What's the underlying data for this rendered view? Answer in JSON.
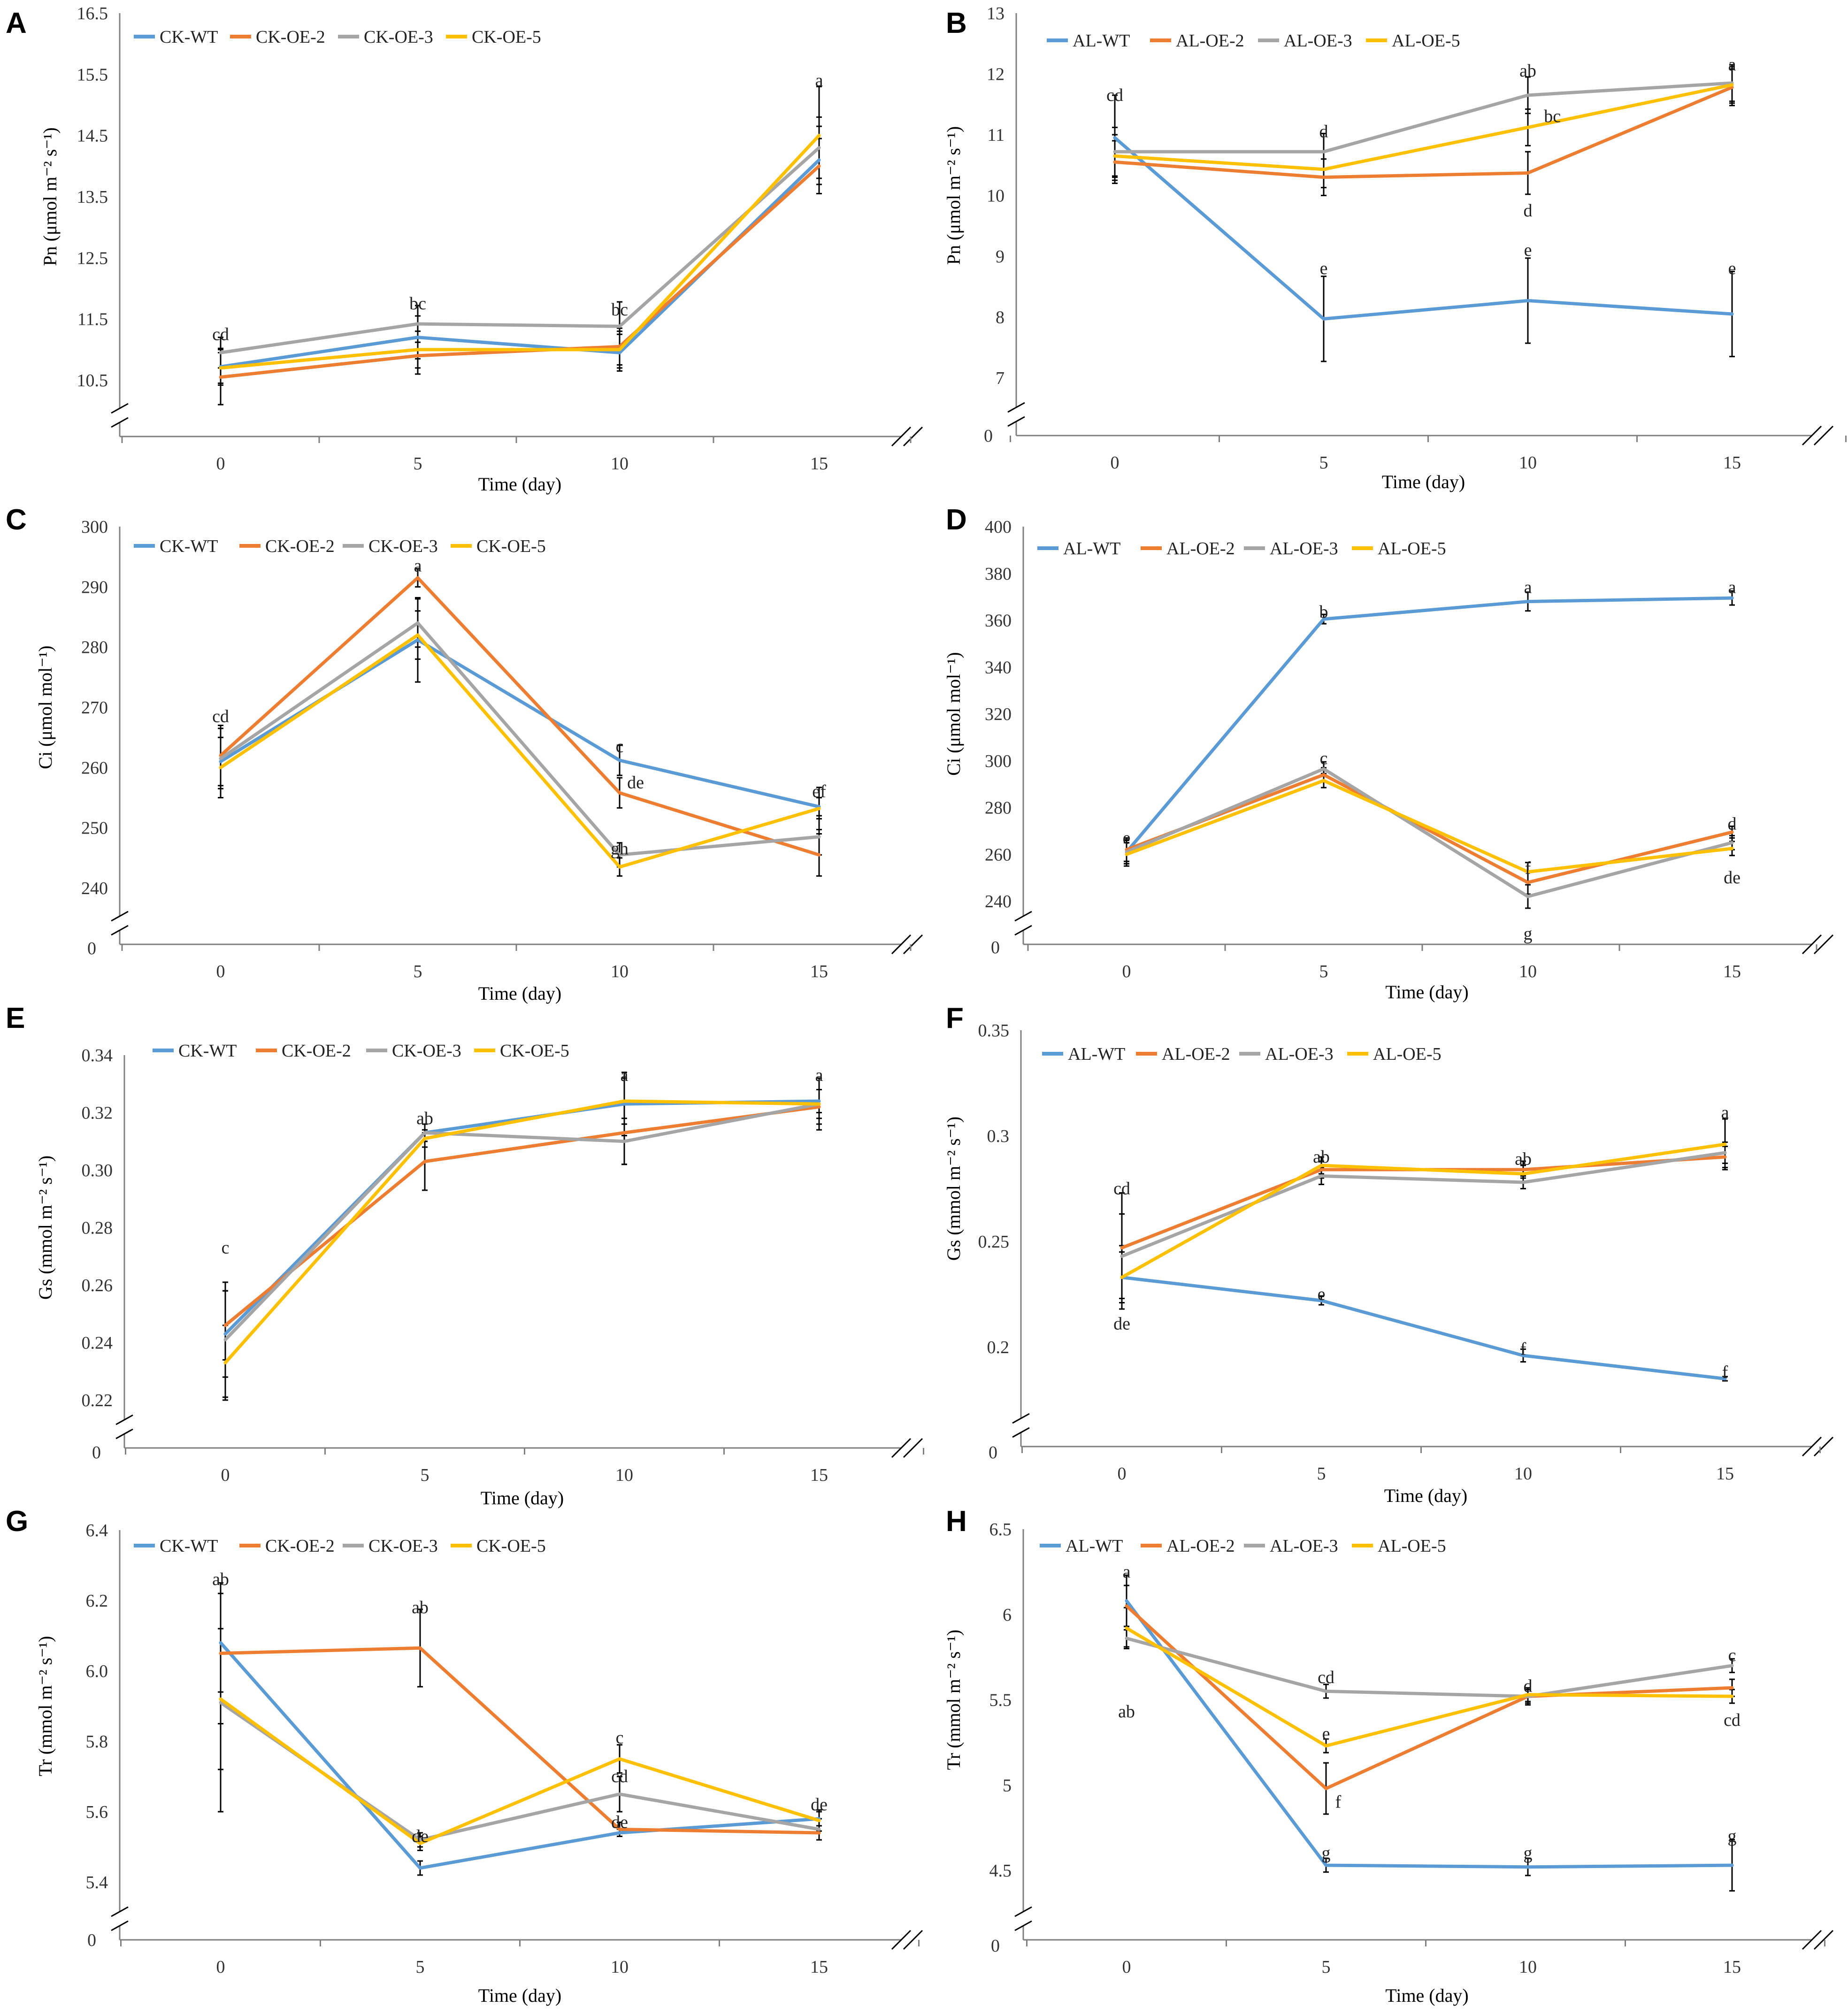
{
  "colors": {
    "WT": "#5B9BD5",
    "OE-2": "#ED7D31",
    "OE-3": "#A5A5A5",
    "OE-5": "#FFC000",
    "axis": "#7F7F7F",
    "errorbar": "#000000"
  },
  "chart_data": [
    {
      "panel": "A",
      "type": "line",
      "x": [
        0,
        5,
        10,
        15
      ],
      "xlabel": "Time (day)",
      "ylabel": "Pn (μmol m⁻² s⁻¹)",
      "ylim": [
        10.5,
        16.5
      ],
      "yticks": [
        "10.5",
        "11.5",
        "12.5",
        "13.5",
        "14.5",
        "15.5",
        "16.5"
      ],
      "zero_label": "",
      "series": [
        {
          "name": "CK-WT",
          "key": "WT",
          "values": [
            10.72,
            11.2,
            10.95,
            14.1
          ],
          "err": [
            0.3,
            0.35,
            0.3,
            0.55
          ]
        },
        {
          "name": "CK-OE-2",
          "key": "OE-2",
          "values": [
            10.55,
            10.9,
            11.05,
            14.0
          ],
          "err": [
            0.45,
            0.3,
            0.3,
            0.45
          ]
        },
        {
          "name": "CK-OE-3",
          "key": "OE-3",
          "values": [
            10.95,
            11.42,
            11.38,
            14.3
          ],
          "err": [
            0.25,
            0.3,
            0.4,
            0.5
          ]
        },
        {
          "name": "CK-OE-5",
          "key": "OE-5",
          "values": [
            10.7,
            11.0,
            11.0,
            14.5
          ],
          "err": [
            0.25,
            0.3,
            0.3,
            0.8
          ]
        }
      ],
      "annotations": [
        {
          "text": "cd",
          "x": 0,
          "y": 11.25
        },
        {
          "text": "bc",
          "x": 5,
          "y": 11.75
        },
        {
          "text": "bc",
          "x": 10,
          "y": 11.65
        },
        {
          "text": "a",
          "x": 15,
          "y": 15.4
        }
      ]
    },
    {
      "panel": "B",
      "type": "line",
      "x": [
        0,
        5,
        10,
        15
      ],
      "xlabel": "Time (day)",
      "ylabel": "Pn (μmol m⁻² s⁻¹)",
      "ylim": [
        7,
        13
      ],
      "yticks": [
        "7",
        "8",
        "9",
        "10",
        "11",
        "12",
        "13"
      ],
      "zero_label": "0",
      "series": [
        {
          "name": "AL-WT",
          "key": "WT",
          "values": [
            10.95,
            7.97,
            8.27,
            8.05
          ],
          "err": [
            0.7,
            0.7,
            0.7,
            0.7
          ]
        },
        {
          "name": "AL-OE-2",
          "key": "OE-2",
          "values": [
            10.55,
            10.3,
            10.37,
            11.78
          ],
          "err": [
            0.35,
            0.3,
            0.35,
            0.3
          ]
        },
        {
          "name": "AL-OE-3",
          "key": "OE-3",
          "values": [
            10.72,
            10.72,
            11.65,
            11.85
          ],
          "err": [
            0.4,
            0.3,
            0.3,
            0.3
          ]
        },
        {
          "name": "AL-OE-5",
          "key": "OE-5",
          "values": [
            10.65,
            10.43,
            11.12,
            11.82
          ],
          "err": [
            0.35,
            0.3,
            0.3,
            0.3
          ]
        }
      ],
      "annotations": [
        {
          "text": "cd",
          "x": 0,
          "y": 11.65
        },
        {
          "text": "d",
          "x": 5,
          "y": 11.05
        },
        {
          "text": "ab",
          "x": 10,
          "y": 12.05
        },
        {
          "text": "bc",
          "x": 10.6,
          "y": 11.3
        },
        {
          "text": "d",
          "x": 10,
          "y": 9.75
        },
        {
          "text": "a",
          "x": 15,
          "y": 12.15
        },
        {
          "text": "e",
          "x": 5,
          "y": 8.8
        },
        {
          "text": "e",
          "x": 10,
          "y": 9.1
        },
        {
          "text": "e",
          "x": 15,
          "y": 8.8
        }
      ]
    },
    {
      "panel": "C",
      "type": "line",
      "x": [
        0,
        5,
        10,
        15
      ],
      "xlabel": "Time (day)",
      "ylabel": "Ci (μmol mol⁻¹)",
      "ylim": [
        240,
        300
      ],
      "yticks": [
        "240",
        "250",
        "260",
        "270",
        "280",
        "290",
        "300"
      ],
      "zero_label": "0",
      "series": [
        {
          "name": "CK-WT",
          "key": "WT",
          "values": [
            261,
            281.2,
            261.2,
            253.5
          ],
          "err": [
            6,
            7,
            2.5,
            1.5
          ]
        },
        {
          "name": "CK-OE-2",
          "key": "OE-2",
          "values": [
            262,
            291.5,
            255.8,
            245.5
          ],
          "err": [
            5,
            1.5,
            2.5,
            3.5
          ]
        },
        {
          "name": "CK-OE-3",
          "key": "OE-3",
          "values": [
            261.5,
            284,
            245.5,
            248.5
          ],
          "err": [
            5,
            4,
            2,
            3
          ]
        },
        {
          "name": "CK-OE-5",
          "key": "OE-5",
          "values": [
            260,
            282,
            243.5,
            253.2
          ],
          "err": [
            5,
            4,
            1.5,
            3.5
          ]
        }
      ],
      "annotations": [
        {
          "text": "cd",
          "x": 0,
          "y": 268.5
        },
        {
          "text": "a",
          "x": 5,
          "y": 293.5
        },
        {
          "text": "c",
          "x": 10,
          "y": 263.5
        },
        {
          "text": "de",
          "x": 10.4,
          "y": 257.5
        },
        {
          "text": "gh",
          "x": 10,
          "y": 246.5
        },
        {
          "text": "ef",
          "x": 15,
          "y": 256
        }
      ]
    },
    {
      "panel": "D",
      "type": "line",
      "x": [
        0,
        5,
        10,
        15
      ],
      "xlabel": "Time (day)",
      "ylabel": "Ci (μmol mol⁻¹)",
      "ylim": [
        240,
        400
      ],
      "yticks": [
        "240",
        "260",
        "280",
        "300",
        "320",
        "340",
        "360",
        "380",
        "400"
      ],
      "zero_label": "0",
      "series": [
        {
          "name": "AL-WT",
          "key": "WT",
          "values": [
            261,
            360.5,
            368,
            369.5
          ],
          "err": [
            5,
            2,
            4,
            3
          ]
        },
        {
          "name": "AL-OE-2",
          "key": "OE-2",
          "values": [
            262,
            294,
            248,
            269.5
          ],
          "err": [
            5,
            3,
            5,
            2.5
          ]
        },
        {
          "name": "AL-OE-3",
          "key": "OE-3",
          "values": [
            261,
            296.5,
            242,
            265
          ],
          "err": [
            5,
            3,
            5,
            3
          ]
        },
        {
          "name": "AL-OE-5",
          "key": "OE-5",
          "values": [
            260,
            291.5,
            252.5,
            262.5
          ],
          "err": [
            5,
            3,
            4,
            3
          ]
        }
      ],
      "annotations": [
        {
          "text": "e",
          "x": 0,
          "y": 267
        },
        {
          "text": "b",
          "x": 5,
          "y": 363.5
        },
        {
          "text": "a",
          "x": 10,
          "y": 374
        },
        {
          "text": "a",
          "x": 15,
          "y": 374
        },
        {
          "text": "c",
          "x": 5,
          "y": 301
        },
        {
          "text": "f",
          "x": 10,
          "y": 254
        },
        {
          "text": "g",
          "x": 10,
          "y": 226
        },
        {
          "text": "d",
          "x": 15,
          "y": 273
        },
        {
          "text": "de",
          "x": 15,
          "y": 250
        }
      ]
    },
    {
      "panel": "E",
      "type": "line",
      "x": [
        0,
        5,
        10,
        15
      ],
      "xlabel": "Time (day)",
      "ylabel": "Gs (mmol m⁻² s⁻¹)",
      "ylim": [
        0.22,
        0.34
      ],
      "yticks": [
        "0.22",
        "0.24",
        "0.26",
        "0.28",
        "0.30",
        "0.32",
        "0.34"
      ],
      "zero_label": "0",
      "series": [
        {
          "name": "CK-WT",
          "key": "WT",
          "values": [
            0.243,
            0.313,
            0.323,
            0.324
          ],
          "err": [
            0.015,
            0.003,
            0.011,
            0.004
          ]
        },
        {
          "name": "CK-OE-2",
          "key": "OE-2",
          "values": [
            0.246,
            0.303,
            0.313,
            0.322
          ],
          "err": [
            0.012,
            0.01,
            0.011,
            0.006
          ]
        },
        {
          "name": "CK-OE-3",
          "key": "OE-3",
          "values": [
            0.241,
            0.313,
            0.31,
            0.323
          ],
          "err": [
            0.02,
            0.003,
            0.008,
            0.005
          ]
        },
        {
          "name": "CK-OE-5",
          "key": "OE-5",
          "values": [
            0.233,
            0.311,
            0.324,
            0.323
          ],
          "err": [
            0.013,
            0.003,
            0.008,
            0.009
          ]
        }
      ],
      "annotations": [
        {
          "text": "c",
          "x": 0,
          "y": 0.273
        },
        {
          "text": "ab",
          "x": 5,
          "y": 0.318
        },
        {
          "text": "a",
          "x": 10,
          "y": 0.333
        },
        {
          "text": "a",
          "x": 15,
          "y": 0.333
        }
      ]
    },
    {
      "panel": "F",
      "type": "line",
      "x": [
        0,
        5,
        10,
        15
      ],
      "xlabel": "Time (day)",
      "ylabel": "Gs (mmol m⁻² s⁻¹)",
      "ylim": [
        0.2,
        0.35
      ],
      "yticks": [
        "0.2",
        "0.25",
        "0.3",
        "0.35"
      ],
      "zero_label": "0",
      "series": [
        {
          "name": "AL-WT",
          "key": "WT",
          "values": [
            0.233,
            0.222,
            0.196,
            0.185
          ],
          "err": [
            0.012,
            0.002,
            0.003,
            0.001
          ]
        },
        {
          "name": "AL-OE-2",
          "key": "OE-2",
          "values": [
            0.247,
            0.284,
            0.284,
            0.29
          ],
          "err": [
            0.026,
            0.004,
            0.004,
            0.005
          ]
        },
        {
          "name": "AL-OE-3",
          "key": "OE-3",
          "values": [
            0.243,
            0.281,
            0.278,
            0.292
          ],
          "err": [
            0.02,
            0.004,
            0.003,
            0.005
          ]
        },
        {
          "name": "AL-OE-5",
          "key": "OE-5",
          "values": [
            0.233,
            0.286,
            0.282,
            0.296
          ],
          "err": [
            0.015,
            0.004,
            0.004,
            0.012
          ]
        }
      ],
      "annotations": [
        {
          "text": "cd",
          "x": 0,
          "y": 0.275
        },
        {
          "text": "de",
          "x": 0,
          "y": 0.211
        },
        {
          "text": "ab",
          "x": 5,
          "y": 0.29
        },
        {
          "text": "ab",
          "x": 10,
          "y": 0.289
        },
        {
          "text": "a",
          "x": 15,
          "y": 0.311
        },
        {
          "text": "e",
          "x": 5,
          "y": 0.225
        },
        {
          "text": "f",
          "x": 10,
          "y": 0.199
        },
        {
          "text": "f",
          "x": 15,
          "y": 0.188
        }
      ]
    },
    {
      "panel": "G",
      "type": "line",
      "x": [
        0,
        5,
        10,
        15
      ],
      "xlabel": "Time (day)",
      "ylabel": "Tr (mmol m⁻² s⁻¹)",
      "ylim": [
        5.4,
        6.4
      ],
      "yticks": [
        "5.4",
        "5.6",
        "5.8",
        "6.0",
        "6.2",
        "6.4"
      ],
      "zero_label": "0",
      "series": [
        {
          "name": "CK-WT",
          "key": "WT",
          "values": [
            6.08,
            5.44,
            5.54,
            5.58
          ],
          "err": [
            0.14,
            0.02,
            0.01,
            0.02
          ]
        },
        {
          "name": "CK-OE-2",
          "key": "OE-2",
          "values": [
            6.05,
            6.065,
            5.55,
            5.54
          ],
          "err": [
            0.2,
            0.11,
            0.02,
            0.02
          ]
        },
        {
          "name": "CK-OE-3",
          "key": "OE-3",
          "values": [
            5.91,
            5.52,
            5.65,
            5.55
          ],
          "err": [
            0.31,
            0.02,
            0.05,
            0.03
          ]
        },
        {
          "name": "CK-OE-5",
          "key": "OE-5",
          "values": [
            5.92,
            5.51,
            5.75,
            5.575
          ],
          "err": [
            0.2,
            0.02,
            0.04,
            0.03
          ]
        }
      ],
      "annotations": [
        {
          "text": "ab",
          "x": 0,
          "y": 6.26
        },
        {
          "text": "ab",
          "x": 5,
          "y": 6.18
        },
        {
          "text": "de",
          "x": 5,
          "y": 5.53
        },
        {
          "text": "c",
          "x": 10,
          "y": 5.81
        },
        {
          "text": "cd",
          "x": 10,
          "y": 5.7
        },
        {
          "text": "de",
          "x": 10,
          "y": 5.57
        },
        {
          "text": "de",
          "x": 15,
          "y": 5.62
        }
      ]
    },
    {
      "panel": "H",
      "type": "line",
      "x": [
        0,
        5,
        10,
        15
      ],
      "xlabel": "Time (day)",
      "ylabel": "Tr (mmol m⁻² s⁻¹)",
      "ylim": [
        4.5,
        6.5
      ],
      "yticks": [
        "4.5",
        "5",
        "5.5",
        "6",
        "6.5"
      ],
      "zero_label": "0",
      "series": [
        {
          "name": "AL-WT",
          "key": "WT",
          "values": [
            6.08,
            4.53,
            4.52,
            4.53
          ],
          "err": [
            0.15,
            0.04,
            0.05,
            0.15
          ]
        },
        {
          "name": "AL-OE-2",
          "key": "OE-2",
          "values": [
            6.05,
            4.98,
            5.52,
            5.57
          ],
          "err": [
            0.12,
            0.15,
            0.05,
            0.05
          ]
        },
        {
          "name": "AL-OE-3",
          "key": "OE-3",
          "values": [
            5.86,
            5.55,
            5.52,
            5.7
          ],
          "err": [
            0.05,
            0.04,
            0.04,
            0.04
          ]
        },
        {
          "name": "AL-OE-5",
          "key": "OE-5",
          "values": [
            5.92,
            5.23,
            5.53,
            5.52
          ],
          "err": [
            0.12,
            0.04,
            0.04,
            0.04
          ]
        }
      ],
      "annotations": [
        {
          "text": "a",
          "x": 0,
          "y": 6.25
        },
        {
          "text": "ab",
          "x": 0,
          "y": 5.43
        },
        {
          "text": "cd",
          "x": 5,
          "y": 5.63
        },
        {
          "text": "e",
          "x": 5,
          "y": 5.3
        },
        {
          "text": "f",
          "x": 5.3,
          "y": 4.9
        },
        {
          "text": "g",
          "x": 5,
          "y": 4.6
        },
        {
          "text": "d",
          "x": 10,
          "y": 5.58
        },
        {
          "text": "g",
          "x": 10,
          "y": 4.6
        },
        {
          "text": "c",
          "x": 15,
          "y": 5.76
        },
        {
          "text": "cd",
          "x": 15,
          "y": 5.38
        },
        {
          "text": "g",
          "x": 15,
          "y": 4.7
        }
      ]
    }
  ]
}
